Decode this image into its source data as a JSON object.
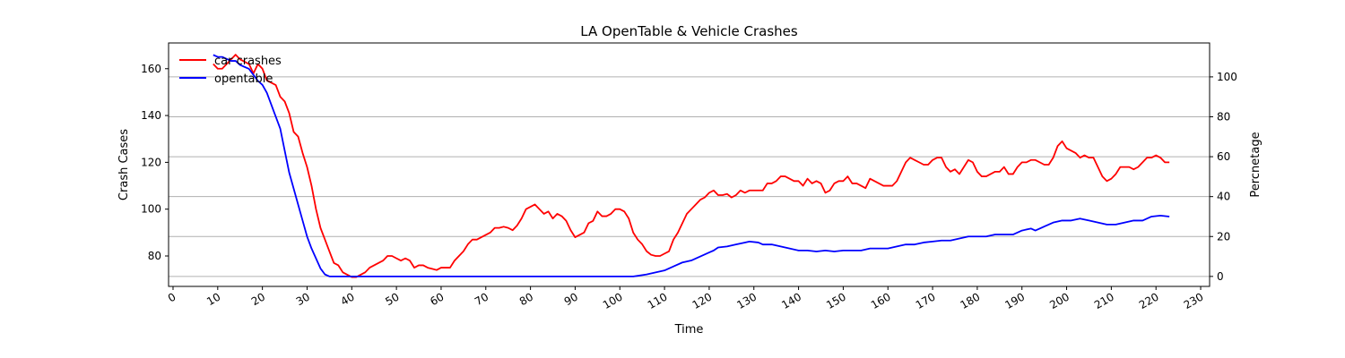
{
  "chart_data": {
    "type": "line",
    "title": "LA OpenTable & Vehicle Crashes",
    "xlabel": "Time",
    "ylabel_left": "Crash Cases",
    "ylabel_right": "Percnetage",
    "xlim": [
      -1,
      232
    ],
    "ylim_left": [
      67,
      171
    ],
    "ylim_right": [
      -5,
      117
    ],
    "x_ticks": [
      0,
      10,
      20,
      30,
      40,
      50,
      60,
      70,
      80,
      90,
      100,
      110,
      120,
      130,
      140,
      150,
      160,
      170,
      180,
      190,
      200,
      210,
      220,
      230
    ],
    "y_ticks_left": [
      80,
      100,
      120,
      140,
      160
    ],
    "y_ticks_right": [
      0,
      20,
      40,
      60,
      80,
      100
    ],
    "grid": "right-axis horizontal lines",
    "legend_position": "top-left",
    "series": [
      {
        "name": "car crashes",
        "axis": "left",
        "color": "#ff0000",
        "points": [
          [
            9,
            162
          ],
          [
            10,
            160
          ],
          [
            11,
            160
          ],
          [
            12,
            162
          ],
          [
            13,
            164
          ],
          [
            14,
            166
          ],
          [
            15,
            164
          ],
          [
            16,
            163
          ],
          [
            17,
            162
          ],
          [
            18,
            158
          ],
          [
            19,
            162
          ],
          [
            20,
            160
          ],
          [
            21,
            155
          ],
          [
            22,
            154
          ],
          [
            23,
            153
          ],
          [
            24,
            148
          ],
          [
            25,
            146
          ],
          [
            26,
            141
          ],
          [
            27,
            133
          ],
          [
            28,
            131
          ],
          [
            29,
            124
          ],
          [
            30,
            118
          ],
          [
            31,
            110
          ],
          [
            32,
            100
          ],
          [
            33,
            92
          ],
          [
            34,
            87
          ],
          [
            35,
            82
          ],
          [
            36,
            77
          ],
          [
            37,
            76
          ],
          [
            38,
            73
          ],
          [
            39,
            72
          ],
          [
            40,
            71
          ],
          [
            41,
            71
          ],
          [
            42,
            72
          ],
          [
            43,
            73
          ],
          [
            44,
            75
          ],
          [
            45,
            76
          ],
          [
            46,
            77
          ],
          [
            47,
            78
          ],
          [
            48,
            80
          ],
          [
            49,
            80
          ],
          [
            50,
            79
          ],
          [
            51,
            78
          ],
          [
            52,
            79
          ],
          [
            53,
            78
          ],
          [
            54,
            75
          ],
          [
            55,
            76
          ],
          [
            56,
            76
          ],
          [
            57,
            75
          ],
          [
            58,
            74.5
          ],
          [
            59,
            74
          ],
          [
            60,
            75
          ],
          [
            61,
            75
          ],
          [
            62,
            75
          ],
          [
            63,
            78
          ],
          [
            64,
            80
          ],
          [
            65,
            82
          ],
          [
            66,
            85
          ],
          [
            67,
            87
          ],
          [
            68,
            87
          ],
          [
            69,
            88
          ],
          [
            70,
            89
          ],
          [
            71,
            90
          ],
          [
            72,
            92
          ],
          [
            73,
            92
          ],
          [
            74,
            92.5
          ],
          [
            75,
            92
          ],
          [
            76,
            91
          ],
          [
            77,
            93
          ],
          [
            78,
            96
          ],
          [
            79,
            100
          ],
          [
            80,
            101
          ],
          [
            81,
            102
          ],
          [
            82,
            100
          ],
          [
            83,
            98
          ],
          [
            84,
            99
          ],
          [
            85,
            96
          ],
          [
            86,
            98
          ],
          [
            87,
            97
          ],
          [
            88,
            95
          ],
          [
            89,
            91
          ],
          [
            90,
            88
          ],
          [
            91,
            89
          ],
          [
            92,
            90
          ],
          [
            93,
            94
          ],
          [
            94,
            95
          ],
          [
            95,
            99
          ],
          [
            96,
            97
          ],
          [
            97,
            97
          ],
          [
            98,
            98
          ],
          [
            99,
            100
          ],
          [
            100,
            100
          ],
          [
            101,
            99
          ],
          [
            102,
            96
          ],
          [
            103,
            90
          ],
          [
            104,
            87
          ],
          [
            105,
            85
          ],
          [
            106,
            82
          ],
          [
            107,
            80.5
          ],
          [
            108,
            80
          ],
          [
            109,
            80
          ],
          [
            110,
            81
          ],
          [
            111,
            82
          ],
          [
            112,
            87
          ],
          [
            113,
            90
          ],
          [
            114,
            94
          ],
          [
            115,
            98
          ],
          [
            116,
            100
          ],
          [
            117,
            102
          ],
          [
            118,
            104
          ],
          [
            119,
            105
          ],
          [
            120,
            107
          ],
          [
            121,
            108
          ],
          [
            122,
            106
          ],
          [
            123,
            106
          ],
          [
            124,
            106.5
          ],
          [
            125,
            105
          ],
          [
            126,
            106
          ],
          [
            127,
            108
          ],
          [
            128,
            107
          ],
          [
            129,
            108
          ],
          [
            130,
            108
          ],
          [
            131,
            108
          ],
          [
            132,
            108
          ],
          [
            133,
            111
          ],
          [
            134,
            111
          ],
          [
            135,
            112
          ],
          [
            136,
            114
          ],
          [
            137,
            114
          ],
          [
            138,
            113
          ],
          [
            139,
            112
          ],
          [
            140,
            112
          ],
          [
            141,
            110
          ],
          [
            142,
            113
          ],
          [
            143,
            111
          ],
          [
            144,
            112
          ],
          [
            145,
            111
          ],
          [
            146,
            107
          ],
          [
            147,
            108
          ],
          [
            148,
            111
          ],
          [
            149,
            112
          ],
          [
            150,
            112
          ],
          [
            151,
            114
          ],
          [
            152,
            111
          ],
          [
            153,
            111
          ],
          [
            154,
            110
          ],
          [
            155,
            109
          ],
          [
            156,
            113
          ],
          [
            157,
            112
          ],
          [
            158,
            111
          ],
          [
            159,
            110
          ],
          [
            160,
            110
          ],
          [
            161,
            110
          ],
          [
            162,
            112
          ],
          [
            163,
            116
          ],
          [
            164,
            120
          ],
          [
            165,
            122
          ],
          [
            166,
            121
          ],
          [
            167,
            120
          ],
          [
            168,
            119
          ],
          [
            169,
            119
          ],
          [
            170,
            121
          ],
          [
            171,
            122
          ],
          [
            172,
            122
          ],
          [
            173,
            118
          ],
          [
            174,
            116
          ],
          [
            175,
            117
          ],
          [
            176,
            115
          ],
          [
            177,
            118
          ],
          [
            178,
            121
          ],
          [
            179,
            120
          ],
          [
            180,
            116
          ],
          [
            181,
            114
          ],
          [
            182,
            114
          ],
          [
            183,
            115
          ],
          [
            184,
            116
          ],
          [
            185,
            116
          ],
          [
            186,
            118
          ],
          [
            187,
            115
          ],
          [
            188,
            115
          ],
          [
            189,
            118
          ],
          [
            190,
            120
          ],
          [
            191,
            120
          ],
          [
            192,
            121
          ],
          [
            193,
            121
          ],
          [
            194,
            120
          ],
          [
            195,
            119
          ],
          [
            196,
            119
          ],
          [
            197,
            122
          ],
          [
            198,
            127
          ],
          [
            199,
            129
          ],
          [
            200,
            126
          ],
          [
            201,
            125
          ],
          [
            202,
            124
          ],
          [
            203,
            122
          ],
          [
            204,
            123
          ],
          [
            205,
            122
          ],
          [
            206,
            122
          ],
          [
            207,
            118
          ],
          [
            208,
            114
          ],
          [
            209,
            112
          ],
          [
            210,
            113
          ],
          [
            211,
            115
          ],
          [
            212,
            118
          ],
          [
            213,
            118
          ],
          [
            214,
            118
          ],
          [
            215,
            117
          ],
          [
            216,
            118
          ],
          [
            217,
            120
          ],
          [
            218,
            122
          ],
          [
            219,
            122
          ],
          [
            220,
            123
          ],
          [
            221,
            122
          ],
          [
            222,
            120
          ],
          [
            223,
            120
          ]
        ]
      },
      {
        "name": "opentable",
        "axis": "right",
        "color": "#0000ff",
        "points": [
          [
            9,
            111
          ],
          [
            10,
            110
          ],
          [
            11,
            110
          ],
          [
            12,
            109
          ],
          [
            13,
            108
          ],
          [
            14,
            108
          ],
          [
            15,
            106
          ],
          [
            16,
            105
          ],
          [
            17,
            104
          ],
          [
            18,
            101
          ],
          [
            19,
            98
          ],
          [
            20,
            96
          ],
          [
            21,
            92
          ],
          [
            22,
            86
          ],
          [
            23,
            80
          ],
          [
            24,
            74
          ],
          [
            25,
            63
          ],
          [
            26,
            52
          ],
          [
            27,
            44
          ],
          [
            28,
            36
          ],
          [
            29,
            28
          ],
          [
            30,
            20
          ],
          [
            31,
            14
          ],
          [
            32,
            9
          ],
          [
            33,
            4
          ],
          [
            34,
            1
          ],
          [
            35,
            0
          ],
          [
            36,
            0
          ],
          [
            37,
            0
          ],
          [
            38,
            0
          ],
          [
            39,
            0
          ],
          [
            40,
            0
          ],
          [
            42,
            0
          ],
          [
            50,
            0
          ],
          [
            60,
            0
          ],
          [
            70,
            0
          ],
          [
            80,
            0
          ],
          [
            90,
            0
          ],
          [
            100,
            0
          ],
          [
            103,
            0
          ],
          [
            104,
            0.3
          ],
          [
            106,
            1
          ],
          [
            108,
            2
          ],
          [
            110,
            3
          ],
          [
            112,
            5
          ],
          [
            114,
            7
          ],
          [
            116,
            8
          ],
          [
            118,
            10
          ],
          [
            120,
            12
          ],
          [
            121,
            13
          ],
          [
            122,
            14.5
          ],
          [
            124,
            15
          ],
          [
            126,
            16
          ],
          [
            128,
            17
          ],
          [
            129,
            17.5
          ],
          [
            131,
            17
          ],
          [
            132,
            16
          ],
          [
            134,
            16
          ],
          [
            136,
            15
          ],
          [
            138,
            14
          ],
          [
            140,
            13
          ],
          [
            142,
            13
          ],
          [
            144,
            12.5
          ],
          [
            146,
            13
          ],
          [
            148,
            12.5
          ],
          [
            150,
            13
          ],
          [
            152,
            13
          ],
          [
            154,
            13
          ],
          [
            156,
            14
          ],
          [
            158,
            14
          ],
          [
            160,
            14
          ],
          [
            162,
            15
          ],
          [
            164,
            16
          ],
          [
            166,
            16
          ],
          [
            168,
            17
          ],
          [
            170,
            17.5
          ],
          [
            172,
            18
          ],
          [
            174,
            18
          ],
          [
            176,
            19
          ],
          [
            178,
            20
          ],
          [
            180,
            20
          ],
          [
            182,
            20
          ],
          [
            184,
            21
          ],
          [
            186,
            21
          ],
          [
            188,
            21
          ],
          [
            190,
            23
          ],
          [
            192,
            24
          ],
          [
            193,
            23
          ],
          [
            195,
            25
          ],
          [
            197,
            27
          ],
          [
            199,
            28
          ],
          [
            201,
            28
          ],
          [
            203,
            29
          ],
          [
            205,
            28
          ],
          [
            207,
            27
          ],
          [
            209,
            26
          ],
          [
            211,
            26
          ],
          [
            213,
            27
          ],
          [
            215,
            28
          ],
          [
            217,
            28
          ],
          [
            219,
            30
          ],
          [
            221,
            30.5
          ],
          [
            223,
            30
          ]
        ]
      }
    ]
  }
}
